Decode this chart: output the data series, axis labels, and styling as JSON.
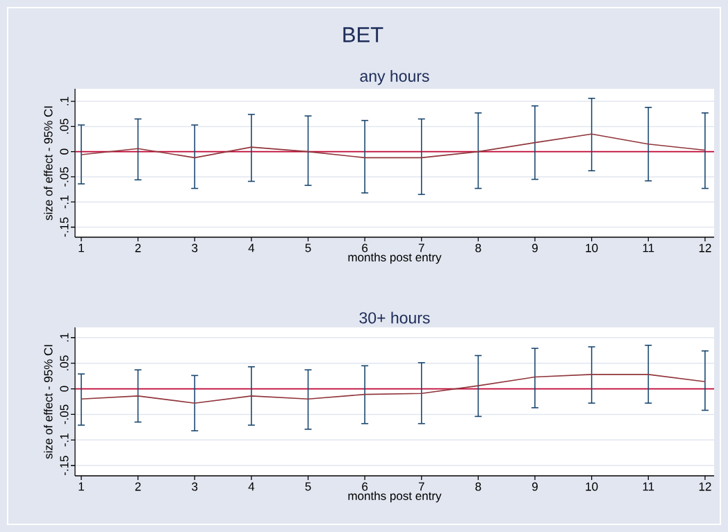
{
  "chart_data": [
    {
      "type": "line",
      "title": "BET",
      "subtitle": "any hours",
      "xlabel": "months post entry",
      "ylabel": "size of effect - 95% CI",
      "x": [
        1,
        2,
        3,
        4,
        5,
        6,
        7,
        8,
        9,
        10,
        11,
        12
      ],
      "series": [
        {
          "color": "#90353b",
          "values": [
            -0.006,
            0.006,
            -0.012,
            0.009,
            0,
            -0.012,
            -0.012,
            0,
            0.018,
            0.035,
            0.015,
            0.003
          ],
          "errors": [
            [
              -0.064,
              0.053
            ],
            [
              -0.056,
              0.065
            ],
            [
              -0.073,
              0.053
            ],
            [
              -0.059,
              0.074
            ],
            [
              -0.067,
              0.071
            ],
            [
              -0.082,
              0.062
            ],
            [
              -0.085,
              0.065
            ],
            [
              -0.073,
              0.077
            ],
            [
              -0.055,
              0.091
            ],
            [
              -0.038,
              0.106
            ],
            [
              -0.058,
              0.088
            ],
            [
              -0.073,
              0.077
            ]
          ],
          "colors": [
            "#1a476f",
            "#1a476f",
            "#1a476f",
            "#1a476f",
            "#1a476f",
            "#1a476f",
            "#1a476f",
            "#1a476f",
            "#1a476f",
            "#1a476f",
            "#1a476f",
            "#1a476f"
          ]
        }
      ],
      "xlim": [
        0.89,
        12.16
      ],
      "xticks": [
        1,
        2,
        3,
        4,
        5,
        6,
        7,
        8,
        9,
        10,
        11,
        12
      ],
      "ylim": [
        -0.17,
        0.125
      ],
      "yticks": [
        {
          "value": -0.15,
          "label": "-.15"
        },
        {
          "value": -0.1,
          "label": "-.1"
        },
        {
          "value": -0.05,
          "label": "-.05"
        },
        {
          "value": 0,
          "label": "0"
        },
        {
          "value": 0.05,
          "label": ".05"
        },
        {
          "value": 0.1,
          "label": ".1"
        }
      ],
      "ref_lines": [
        {
          "axis": "y",
          "value": 0,
          "color": "#c10534"
        }
      ],
      "grid": "y",
      "line_style": "solid"
    },
    {
      "type": "line",
      "title": "30+ hours",
      "xlabel": "months post entry",
      "ylabel": "size of effect - 95% CI",
      "x": [
        1,
        2,
        3,
        4,
        5,
        6,
        7,
        8,
        9,
        10,
        11,
        12
      ],
      "series": [
        {
          "color": "#90353b",
          "values": [
            -0.02,
            -0.014,
            -0.028,
            -0.014,
            -0.02,
            -0.011,
            -0.009,
            0.006,
            0.023,
            0.028,
            0.028,
            0.014
          ],
          "errors": [
            [
              -0.071,
              0.029
            ],
            [
              -0.065,
              0.037
            ],
            [
              -0.082,
              0.026
            ],
            [
              -0.071,
              0.043
            ],
            [
              -0.079,
              0.037
            ],
            [
              -0.068,
              0.045
            ],
            [
              -0.068,
              0.051
            ],
            [
              -0.054,
              0.065
            ],
            [
              -0.037,
              0.079
            ],
            [
              -0.028,
              0.082
            ],
            [
              -0.028,
              0.085
            ],
            [
              -0.042,
              0.074
            ]
          ],
          "colors": [
            "#1a476f",
            "#1a476f",
            "#1a476f",
            "#1a476f",
            "#1a476f",
            "#1a476f",
            "#1a476f",
            "#1a476f",
            "#1a476f",
            "#1a476f",
            "#1a476f",
            "#1a476f"
          ]
        }
      ],
      "xlim": [
        0.89,
        12.16
      ],
      "xticks": [
        1,
        2,
        3,
        4,
        5,
        6,
        7,
        8,
        9,
        10,
        11,
        12
      ],
      "ylim": [
        -0.17,
        0.12
      ],
      "yticks": [
        {
          "value": -0.15,
          "label": "-.15"
        },
        {
          "value": -0.1,
          "label": "-.1"
        },
        {
          "value": -0.05,
          "label": "-.05"
        },
        {
          "value": 0,
          "label": "0"
        },
        {
          "value": 0.05,
          "label": ".05"
        },
        {
          "value": 0.1,
          "label": ".1"
        }
      ],
      "ref_lines": [
        {
          "axis": "y",
          "value": 0,
          "color": "#c10534"
        }
      ],
      "grid": "y",
      "line_style": "solid"
    }
  ]
}
